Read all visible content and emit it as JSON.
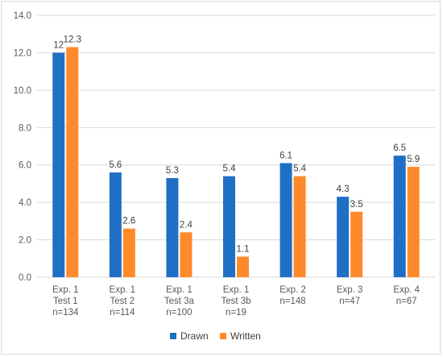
{
  "chart_data": {
    "type": "bar",
    "categories": [
      [
        "Exp. 1",
        "Test 1",
        "n=134"
      ],
      [
        "Exp. 1",
        "Test 2",
        "n=114"
      ],
      [
        "Exp. 1",
        "Test 3a",
        "n=100"
      ],
      [
        "Exp. 1",
        "Test 3b",
        "n=19"
      ],
      [
        "Exp. 2",
        "n=148"
      ],
      [
        "Exp. 3",
        "n=47"
      ],
      [
        "Exp. 4",
        "n=67"
      ]
    ],
    "series": [
      {
        "name": "Drawn",
        "color": "#1f6fc5",
        "values": [
          12,
          5.6,
          5.3,
          5.4,
          6.1,
          4.3,
          6.5
        ],
        "labels": [
          "12",
          "5.6",
          "5.3",
          "5.4",
          "6.1",
          "4.3",
          "6.5"
        ]
      },
      {
        "name": "Written",
        "color": "#ff8a2b",
        "values": [
          12.3,
          2.6,
          2.4,
          1.1,
          5.4,
          3.5,
          5.9
        ],
        "labels": [
          "12.3",
          "2.6",
          "2.4",
          "1.1",
          "5.4",
          "3.5",
          "5.9"
        ]
      }
    ],
    "ylim": [
      0,
      14
    ],
    "yticks": [
      "0.0",
      "2.0",
      "4.0",
      "6.0",
      "8.0",
      "10.0",
      "12.0",
      "14.0"
    ],
    "grid": true,
    "legend_position": "bottom",
    "title": "",
    "xlabel": "",
    "ylabel": ""
  }
}
